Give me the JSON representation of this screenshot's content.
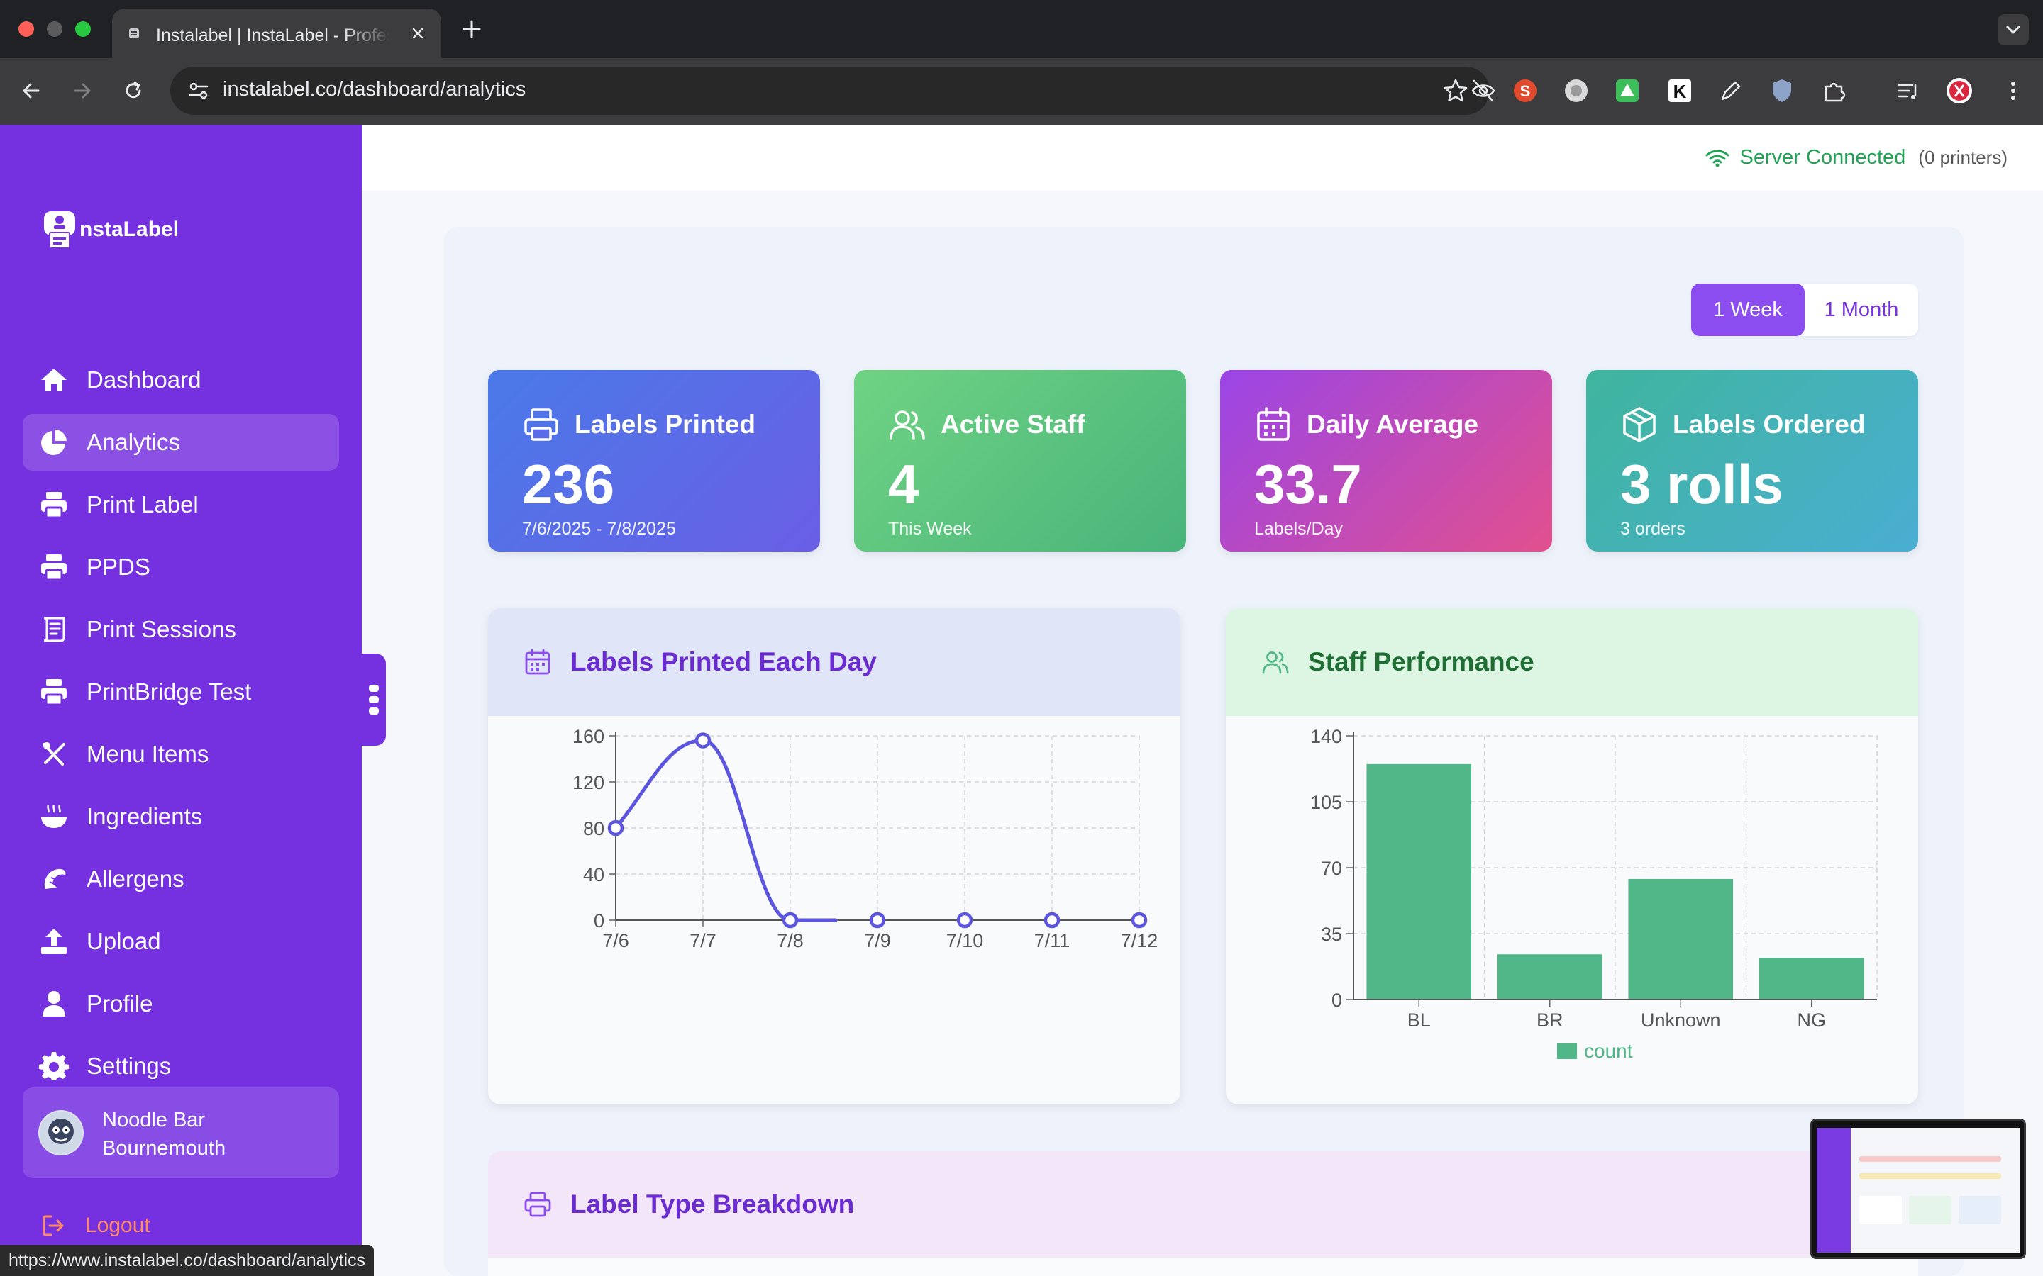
{
  "browser": {
    "tab_title": "Instalabel | InstaLabel - Professional Label Printing",
    "url": "instalabel.co/dashboard/analytics",
    "status_url": "https://www.instalabel.co/dashboard/analytics"
  },
  "app": {
    "logo_text": "nstaLabel",
    "server_status": "Server Connected",
    "printer_count": "(0 printers)"
  },
  "sidebar": {
    "items": [
      {
        "label": "Dashboard",
        "icon": "home-icon"
      },
      {
        "label": "Analytics",
        "icon": "pie-chart-icon",
        "active": true
      },
      {
        "label": "Print Label",
        "icon": "printer-icon"
      },
      {
        "label": "PPDS",
        "icon": "printer-icon"
      },
      {
        "label": "Print Sessions",
        "icon": "scroll-icon"
      },
      {
        "label": "PrintBridge Test",
        "icon": "printer-icon"
      },
      {
        "label": "Menu Items",
        "icon": "utensils-icon"
      },
      {
        "label": "Ingredients",
        "icon": "pot-icon"
      },
      {
        "label": "Allergens",
        "icon": "shrimp-icon"
      },
      {
        "label": "Upload",
        "icon": "upload-icon"
      },
      {
        "label": "Profile",
        "icon": "user-icon"
      },
      {
        "label": "Settings",
        "icon": "gear-icon"
      }
    ],
    "user": {
      "line1": "Noodle Bar",
      "line2": "Bournemouth"
    },
    "logout_label": "Logout"
  },
  "range": {
    "week": "1 Week",
    "month": "1 Month",
    "selected": "1 Week"
  },
  "stats": [
    {
      "title": "Labels Printed",
      "value": "236",
      "sub": "7/6/2025 - 7/8/2025",
      "icon": "printer-icon"
    },
    {
      "title": "Active Staff",
      "value": "4",
      "sub": "This Week",
      "icon": "users-icon"
    },
    {
      "title": "Daily Average",
      "value": "33.7",
      "sub": "Labels/Day",
      "icon": "calendar-icon"
    },
    {
      "title": "Labels Ordered",
      "value": "3 rolls",
      "sub": "3 orders",
      "icon": "box-icon"
    }
  ],
  "cards": {
    "daily_title": "Labels Printed Each Day",
    "staff_title": "Staff Performance",
    "breakdown_title": "Label Type Breakdown"
  },
  "colors": {
    "sidebar": "#7530e0",
    "line": "#5b55e0",
    "bar": "#52b788",
    "server_ok": "#22a356"
  },
  "chart_data": [
    {
      "type": "line",
      "title": "Labels Printed Each Day",
      "x": [
        "7/6",
        "7/7",
        "7/8",
        "7/9",
        "7/10",
        "7/11",
        "7/12"
      ],
      "series": [
        {
          "values": [
            80,
            156,
            0,
            0,
            0,
            0,
            0
          ]
        }
      ],
      "yticks": [
        0,
        40,
        80,
        120,
        160
      ],
      "ylim": [
        0,
        160
      ],
      "grid": true
    },
    {
      "type": "bar",
      "title": "Staff Performance",
      "categories": [
        "BL",
        "BR",
        "Unknown",
        "NG"
      ],
      "series": [
        {
          "name": "count",
          "values": [
            125,
            24,
            64,
            22
          ]
        }
      ],
      "yticks": [
        0,
        35,
        70,
        105,
        140
      ],
      "ylim": [
        0,
        140
      ],
      "grid": true,
      "legend": "bottom"
    }
  ]
}
